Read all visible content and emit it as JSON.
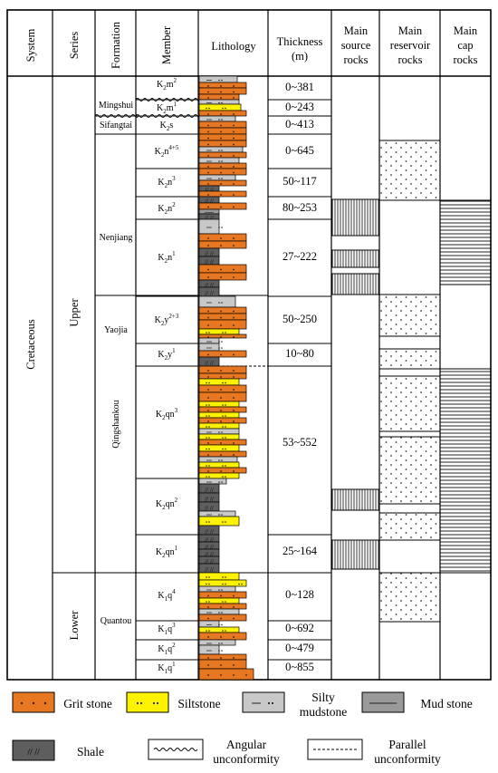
{
  "header": {
    "system": "System",
    "series": "Series",
    "formation": "Formation",
    "member": "Member",
    "lithology": "Lithology",
    "thickness": [
      "Thickness",
      "(m)"
    ],
    "source": [
      "Main",
      "source",
      "rocks"
    ],
    "reservoir": [
      "Main",
      "reservoir",
      "rocks"
    ],
    "cap": [
      "Main",
      "cap",
      "rocks"
    ]
  },
  "system": "Cretaceous",
  "series": [
    "Upper",
    "Lower"
  ],
  "formations": [
    "Mingshui",
    "Sifangtai",
    "Nenjiang",
    "Yaojia",
    "Qingshankou",
    "Quantou"
  ],
  "members": [
    {
      "sym": "K",
      "sub": "2",
      "rest": "m",
      "sup": "2",
      "thickness": "0~381"
    },
    {
      "sym": "K",
      "sub": "2",
      "rest": "m",
      "sup": "1",
      "thickness": "0~243"
    },
    {
      "sym": "K",
      "sub": "2",
      "rest": "s",
      "sup": "",
      "thickness": "0~413"
    },
    {
      "sym": "K",
      "sub": "2",
      "rest": "n",
      "sup": "4+5",
      "thickness": "0~645"
    },
    {
      "sym": "K",
      "sub": "2",
      "rest": "n",
      "sup": "3",
      "thickness": "50~117"
    },
    {
      "sym": "K",
      "sub": "2",
      "rest": "n",
      "sup": "2",
      "thickness": "80~253"
    },
    {
      "sym": "K",
      "sub": "2",
      "rest": "n",
      "sup": "1",
      "thickness": "27~222"
    },
    {
      "sym": "K",
      "sub": "2",
      "rest": "y",
      "sup": "2+3",
      "thickness": "50~250"
    },
    {
      "sym": "K",
      "sub": "2",
      "rest": "y",
      "sup": "1",
      "thickness": "10~80"
    },
    {
      "sym": "K",
      "sub": "2",
      "rest": "qn",
      "sup": "3",
      "thickness": "53~552"
    },
    {
      "sym": "K",
      "sub": "2",
      "rest": "qn",
      "sup": "2",
      "thickness": ""
    },
    {
      "sym": "K",
      "sub": "2",
      "rest": "qn",
      "sup": "1",
      "thickness": "25~164"
    },
    {
      "sym": "K",
      "sub": "1",
      "rest": "q",
      "sup": "4",
      "thickness": "0~128"
    },
    {
      "sym": "K",
      "sub": "1",
      "rest": "q",
      "sup": "3",
      "thickness": "0~692"
    },
    {
      "sym": "K",
      "sub": "1",
      "rest": "q",
      "sup": "2",
      "thickness": "0~479"
    },
    {
      "sym": "K",
      "sub": "1",
      "rest": "q",
      "sup": "1",
      "thickness": "0~855"
    }
  ],
  "colors": {
    "grit_stone": "#e87722",
    "siltstone": "#fff200",
    "silty_mudstone": "#c8c8c8",
    "mud_stone": "#9a9a9a",
    "shale": "#5e5e5e",
    "line": "#000000"
  },
  "legend": {
    "grit_stone": "Grit stone",
    "siltstone": "Siltstone",
    "silty_mudstone": [
      "Silty",
      "mudstone"
    ],
    "mud_stone": "Mud stone",
    "shale": "Shale",
    "angular_unconformity": [
      "Angular",
      "unconformity"
    ],
    "parallel_unconformity": [
      "Parallel",
      "unconformity"
    ]
  }
}
